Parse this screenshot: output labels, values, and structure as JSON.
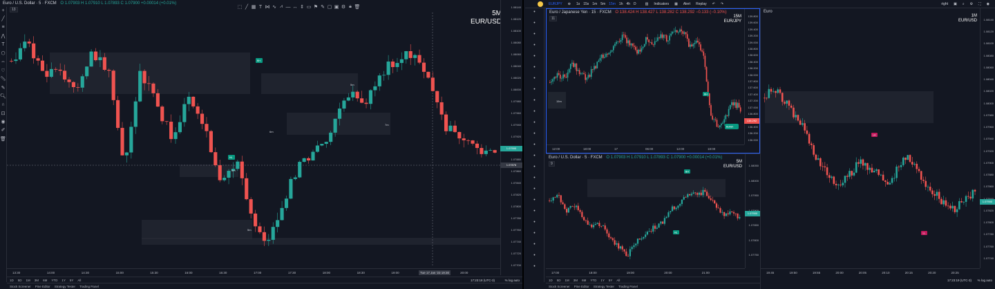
{
  "left_chart": {
    "symbol": "Euro / U.S. Dollar · 5 · FXCM",
    "ohlc": "O 1.07903 H 1.07910 L 1.07893 C 1.07900 +0.00014 (+0.01%)",
    "collapse": "13",
    "label_tf": "5M",
    "label_pair": "EUR/USD",
    "price_ticks": [
      "1.08140",
      "1.08120",
      "1.08100",
      "1.08080",
      "1.08060",
      "1.08040",
      "1.08020",
      "1.08000",
      "1.07980",
      "1.07960",
      "1.07940",
      "1.07920",
      "1.07900",
      "1.07880",
      "1.07860",
      "1.07840",
      "1.07820",
      "1.07800",
      "1.07780",
      "1.07760",
      "1.07740",
      "1.07720",
      "1.07700"
    ],
    "current_price": "1.07900",
    "crosshair_price": "1.07876",
    "time_ticks": [
      "13:30",
      "14:00",
      "14:30",
      "15:00",
      "15:30",
      "16:00",
      "16:30",
      "17:00",
      "17:30",
      "18:00",
      "18:30",
      "19:00",
      "19:30",
      "20:00"
    ],
    "crosshair_time": "Tue 17 Jan '23 19:30",
    "zones": [
      "5m",
      "7m",
      "5m",
      "5m"
    ],
    "zone_extra": "6m",
    "badges": [
      "BH",
      "HL"
    ],
    "timeframes": [
      "1D",
      "5D",
      "1M",
      "3M",
      "6M",
      "YTD",
      "1Y",
      "5Y",
      "All"
    ],
    "clock": "17:23:18 (UTC-3)",
    "options": [
      "%",
      "log",
      "auto"
    ],
    "tabs": [
      "Stock Screener",
      "Pine Editor",
      "Strategy Tester",
      "Trading Panel"
    ]
  },
  "topbar": {
    "symbol": "EURJPY",
    "intervals": [
      "1s",
      "15s",
      "1m",
      "5m",
      "15m",
      "1h",
      "4h",
      "D"
    ],
    "indicators": "Indicators",
    "alert": "Alert",
    "replay": "Replay",
    "layout": "right"
  },
  "jpy_chart": {
    "symbol": "Euro / Japanese Yen · 15 · FXCM",
    "ohlc": "O 138.424 H 138.427 L 138.282 C 138.292 −0.133 (−0.10%)",
    "collapse": "11",
    "label_tf": "15M",
    "label_pair": "EUR/JPY",
    "price_ticks": [
      "139.800",
      "139.600",
      "139.400",
      "139.200",
      "139.000",
      "138.800",
      "138.600",
      "138.400",
      "138.200",
      "138.000",
      "137.800",
      "137.600",
      "137.400",
      "137.200",
      "137.000",
      "136.800",
      "136.600",
      "136.400",
      "136.200",
      "136.000"
    ],
    "current_price": "138.292",
    "time_ticks": [
      "12:00",
      "18:00",
      "17",
      "06:00",
      "12:00",
      "18:00"
    ],
    "zone": "15m",
    "badges": [
      "BH",
      "Bullish"
    ]
  },
  "eurusd5_chart": {
    "symbol": "Euro / U.S. Dollar · 5 · FXCM",
    "ohlc": "O 1.07903 H 1.07910 L 1.07893 C 1.07900 +0.00014 (+0.01%)",
    "collapse": "9",
    "label_tf": "5M",
    "label_pair": "EUR/USD",
    "price_ticks": [
      "1.08050",
      "1.08000",
      "1.07950",
      "1.07900",
      "1.07850",
      "1.07800",
      "1.07750"
    ],
    "current_price": "1.07900",
    "time_ticks": [
      "17:00",
      "18:00",
      "19:00",
      "20:00",
      "21:00"
    ],
    "badges": [
      "BH",
      "HL"
    ],
    "timeframes": [
      "1D",
      "5D",
      "1M",
      "3M",
      "6M",
      "YTD",
      "1Y",
      "5Y",
      "All"
    ],
    "tabs": [
      "Stock Screener",
      "Pine Editor",
      "Strategy Tester",
      "Trading Panel"
    ]
  },
  "eurusd1_chart": {
    "symbol": "Euro",
    "label_tf": "1M",
    "label_pair": "EUR/USD",
    "price_ticks": [
      "1.08140",
      "1.08120",
      "1.08100",
      "1.08080",
      "1.08060",
      "1.08040",
      "1.08020",
      "1.08000",
      "1.07980",
      "1.07960",
      "1.07940",
      "1.07920",
      "1.07900",
      "1.07880",
      "1.07860",
      "1.07840",
      "1.07820",
      "1.07800",
      "1.07780",
      "1.07760",
      "1.07740"
    ],
    "current_price": "1.07900",
    "time_ticks": [
      "19:45",
      "19:50",
      "19:55",
      "20:00",
      "20:05",
      "20:10",
      "20:15",
      "20:20",
      "20:25"
    ],
    "badges": [
      "LH",
      "LL"
    ],
    "clock": "17:23:19 (UTC-3)",
    "options": [
      "%",
      "log",
      "auto"
    ]
  },
  "colors": {
    "bg": "#131722",
    "up": "#26a69a",
    "down": "#ef5350",
    "grid": "#2a2e39",
    "text": "#b2b5be"
  }
}
